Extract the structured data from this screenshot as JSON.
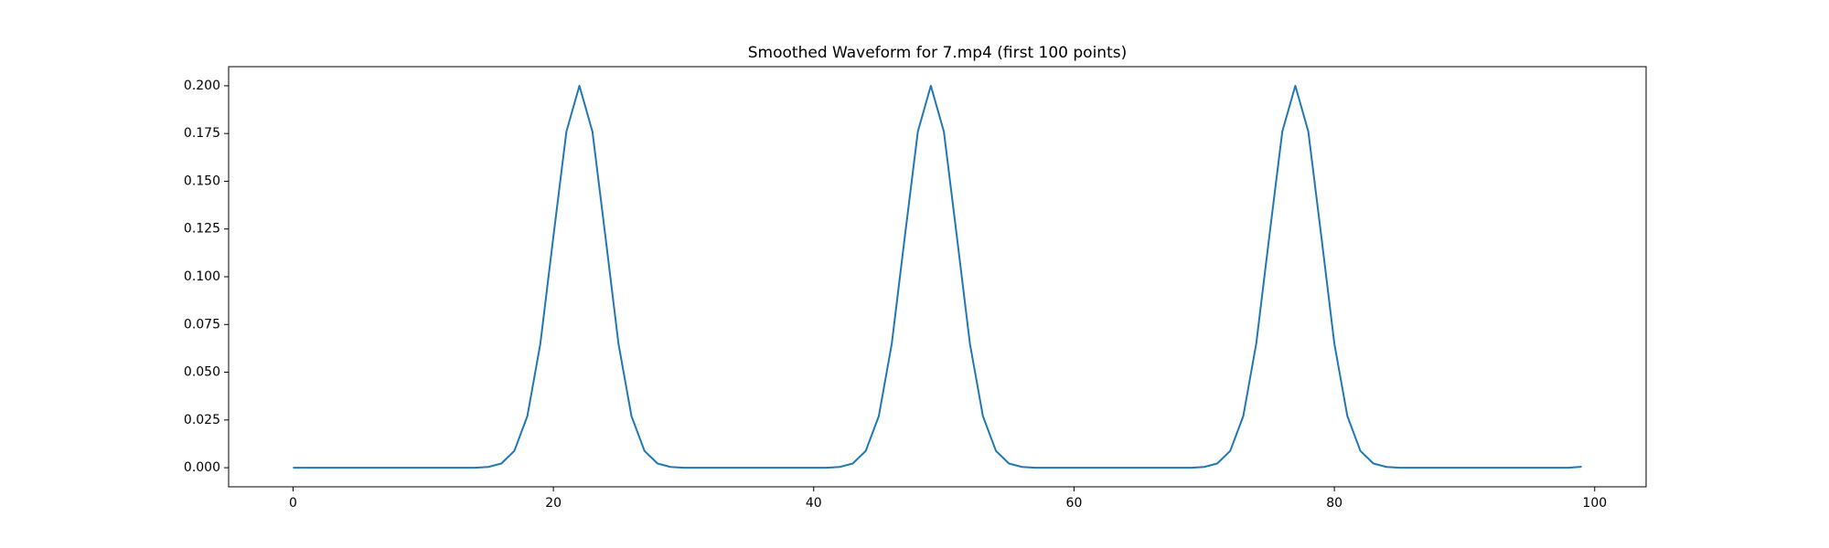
{
  "chart_data": {
    "type": "line",
    "title": "Smoothed Waveform for 7.mp4 (first 100 points)",
    "x": [
      0,
      1,
      2,
      3,
      4,
      5,
      6,
      7,
      8,
      9,
      10,
      11,
      12,
      13,
      14,
      15,
      16,
      17,
      18,
      19,
      20,
      21,
      22,
      23,
      24,
      25,
      26,
      27,
      28,
      29,
      30,
      31,
      32,
      33,
      34,
      35,
      36,
      37,
      38,
      39,
      40,
      41,
      42,
      43,
      44,
      45,
      46,
      47,
      48,
      49,
      50,
      51,
      52,
      53,
      54,
      55,
      56,
      57,
      58,
      59,
      60,
      61,
      62,
      63,
      64,
      65,
      66,
      67,
      68,
      69,
      70,
      71,
      72,
      73,
      74,
      75,
      76,
      77,
      78,
      79,
      80,
      81,
      82,
      83,
      84,
      85,
      86,
      87,
      88,
      89,
      90,
      91,
      92,
      93,
      94,
      95,
      96,
      97,
      98,
      99
    ],
    "values": [
      0,
      0,
      0,
      0,
      0,
      0,
      0,
      0,
      0,
      0,
      0,
      0,
      0,
      0,
      0,
      0.0004,
      0.0022,
      0.0088,
      0.027,
      0.065,
      0.121,
      0.176,
      0.2,
      0.176,
      0.121,
      0.065,
      0.027,
      0.0088,
      0.0022,
      0.0004,
      0,
      0,
      0,
      0,
      0,
      0,
      0,
      0,
      0,
      0,
      0,
      0,
      0.0004,
      0.0022,
      0.0088,
      0.027,
      0.065,
      0.121,
      0.176,
      0.2,
      0.176,
      0.121,
      0.065,
      0.027,
      0.0088,
      0.0022,
      0.0004,
      0,
      0,
      0,
      0,
      0,
      0,
      0,
      0,
      0,
      0,
      0,
      0,
      0,
      0.0004,
      0.0022,
      0.0088,
      0.027,
      0.065,
      0.121,
      0.176,
      0.2,
      0.176,
      0.121,
      0.065,
      0.027,
      0.0088,
      0.0022,
      0.0004,
      0,
      0,
      0,
      0,
      0,
      0,
      0,
      0,
      0,
      0,
      0,
      0,
      0,
      0,
      0.0005
    ],
    "color": "#1f77b4",
    "xlim": [
      -4.95,
      103.95
    ],
    "xticks": [
      0,
      20,
      40,
      60,
      80,
      100
    ],
    "ylim": [
      -0.01,
      0.21
    ],
    "yticks": [
      {
        "value": 0,
        "label": "0.000"
      },
      {
        "value": 0.025,
        "label": "0.025"
      },
      {
        "value": 0.05,
        "label": "0.050"
      },
      {
        "value": 0.075,
        "label": "0.075"
      },
      {
        "value": 0.1,
        "label": "0.100"
      },
      {
        "value": 0.125,
        "label": "0.125"
      },
      {
        "value": 0.15,
        "label": "0.150"
      },
      {
        "value": 0.175,
        "label": "0.175"
      },
      {
        "value": 0.2,
        "label": "0.200"
      }
    ],
    "grid": false
  }
}
